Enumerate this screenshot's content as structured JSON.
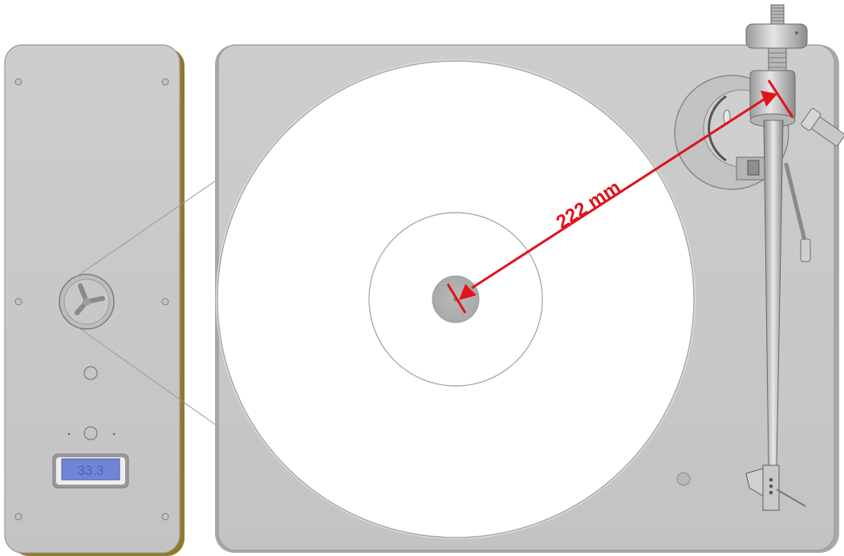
{
  "motor_unit": {
    "speed_display": "33.3"
  },
  "dimension": {
    "label": "222 mm",
    "color": "#e0141b"
  },
  "colors": {
    "plinth": "#c9c9cb",
    "platter": "#ffffff",
    "display": "#6f86d6",
    "arm_metal": "#bdbdbd",
    "plinth_edge": "#8f7a2a"
  }
}
